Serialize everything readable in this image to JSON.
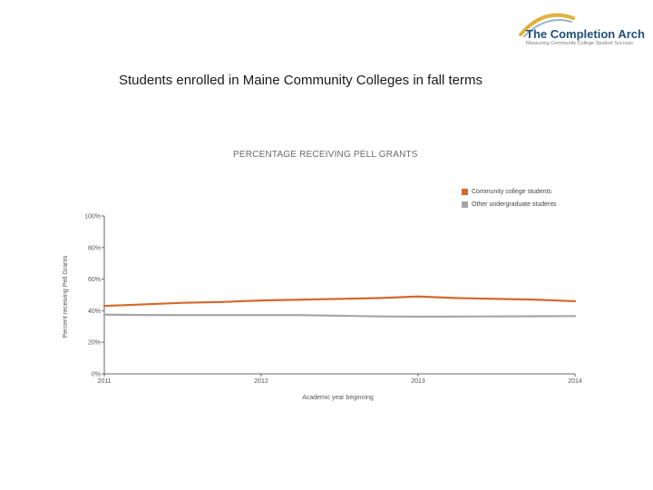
{
  "header": {
    "logo_title": "The Completion Arch",
    "logo_subtitle": "Measuring Community College Student Success"
  },
  "slide_title": "Students enrolled in Maine Community Colleges in fall terms",
  "colors": {
    "community": "#d4692c",
    "other": "#a6a6a6",
    "logo_blue": "#1f4f7a",
    "logo_gold": "#e0b23c"
  },
  "chart_data": {
    "type": "line",
    "title": "PERCENTAGE RECEIVING PELL GRANTS",
    "xlabel": "Academic year beginning",
    "ylabel": "Percent receiving Pell Grants",
    "x": [
      2011,
      2011.25,
      2011.5,
      2011.75,
      2012,
      2012.25,
      2012.5,
      2012.75,
      2013,
      2013.25,
      2013.5,
      2013.75,
      2014
    ],
    "x_ticks": [
      "2011",
      "2012",
      "2013",
      "2014"
    ],
    "y_ticks": [
      "0%",
      "20%",
      "40%",
      "60%",
      "80%",
      "100%"
    ],
    "ylim": [
      0,
      100
    ],
    "grid": false,
    "legend_position": "top-right",
    "series": [
      {
        "name": "Community college students",
        "color": "#d4692c",
        "values": [
          43,
          44,
          45,
          45.5,
          46.5,
          47,
          47.5,
          48,
          49,
          48,
          47.5,
          47,
          46
        ]
      },
      {
        "name": "Other undergraduate students",
        "color": "#a6a6a6",
        "values": [
          37.5,
          37.3,
          37.2,
          37.2,
          37.2,
          37.2,
          36.8,
          36.4,
          36.2,
          36.3,
          36.4,
          36.5,
          36.6
        ]
      }
    ]
  }
}
